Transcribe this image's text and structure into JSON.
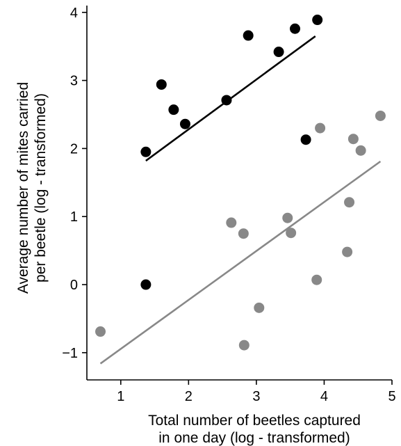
{
  "chart_data": {
    "type": "scatter",
    "title": "",
    "xlabel": [
      "Total number of beetles captured",
      "in one day (log - transformed)"
    ],
    "ylabel": [
      "Average number of mites carried",
      "per beetle (log - transformed)"
    ],
    "xlim": [
      0.5,
      5.0
    ],
    "ylim": [
      -1.4,
      4.1
    ],
    "xticks": [
      1,
      2,
      3,
      4,
      5
    ],
    "xtick_labels": [
      "1",
      "2",
      "3",
      "4",
      "5"
    ],
    "yticks": [
      -1,
      0,
      1,
      2,
      3,
      4
    ],
    "ytick_labels": [
      "−1",
      "0",
      "1",
      "2",
      "3",
      "4"
    ],
    "grid": false,
    "legend": "none",
    "series": [
      {
        "color": "#000000",
        "points": [
          {
            "x": 1.37,
            "y": 1.95
          },
          {
            "x": 1.6,
            "y": 2.94
          },
          {
            "x": 1.78,
            "y": 2.57
          },
          {
            "x": 1.95,
            "y": 2.36
          },
          {
            "x": 2.56,
            "y": 2.71
          },
          {
            "x": 2.88,
            "y": 3.66
          },
          {
            "x": 3.33,
            "y": 3.42
          },
          {
            "x": 3.57,
            "y": 3.76
          },
          {
            "x": 3.9,
            "y": 3.89
          },
          {
            "x": 3.73,
            "y": 2.13
          },
          {
            "x": 1.37,
            "y": 0.0
          }
        ],
        "fit_line": {
          "x1": 1.37,
          "y1": 1.82,
          "x2": 3.87,
          "y2": 3.65
        }
      },
      {
        "color": "#888888",
        "points": [
          {
            "x": 0.7,
            "y": -0.69
          },
          {
            "x": 2.63,
            "y": 0.91
          },
          {
            "x": 2.81,
            "y": 0.75
          },
          {
            "x": 2.82,
            "y": -0.89
          },
          {
            "x": 3.04,
            "y": -0.34
          },
          {
            "x": 3.46,
            "y": 0.98
          },
          {
            "x": 3.51,
            "y": 0.76
          },
          {
            "x": 3.89,
            "y": 0.07
          },
          {
            "x": 3.94,
            "y": 2.3
          },
          {
            "x": 4.34,
            "y": 0.48
          },
          {
            "x": 4.37,
            "y": 1.21
          },
          {
            "x": 4.43,
            "y": 2.14
          },
          {
            "x": 4.54,
            "y": 1.97
          },
          {
            "x": 4.83,
            "y": 2.48
          }
        ],
        "fit_line": {
          "x1": 0.7,
          "y1": -1.16,
          "x2": 4.83,
          "y2": 1.81
        }
      }
    ]
  }
}
